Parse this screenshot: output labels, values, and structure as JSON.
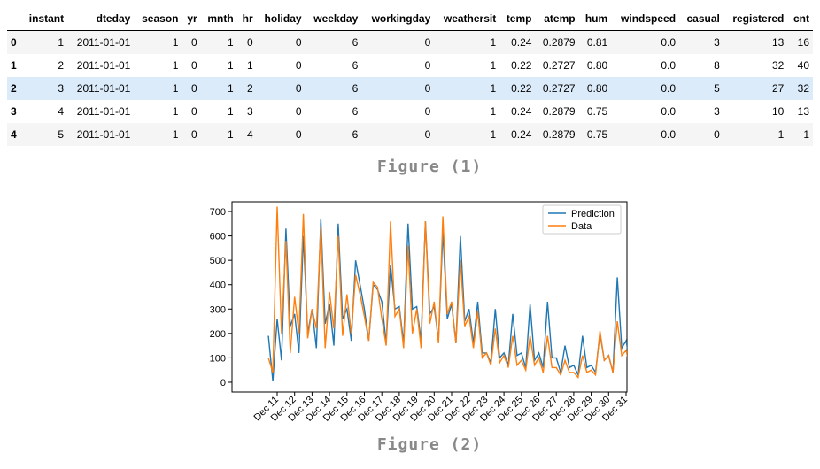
{
  "table": {
    "columns": [
      "",
      "instant",
      "dteday",
      "season",
      "yr",
      "mnth",
      "hr",
      "holiday",
      "weekday",
      "workingday",
      "weathersit",
      "temp",
      "atemp",
      "hum",
      "windspeed",
      "casual",
      "registered",
      "cnt"
    ],
    "rows": [
      [
        "0",
        "1",
        "2011-01-01",
        "1",
        "0",
        "1",
        "0",
        "0",
        "6",
        "0",
        "1",
        "0.24",
        "0.2879",
        "0.81",
        "0.0",
        "3",
        "13",
        "16"
      ],
      [
        "1",
        "2",
        "2011-01-01",
        "1",
        "0",
        "1",
        "1",
        "0",
        "6",
        "0",
        "1",
        "0.22",
        "0.2727",
        "0.80",
        "0.0",
        "8",
        "32",
        "40"
      ],
      [
        "2",
        "3",
        "2011-01-01",
        "1",
        "0",
        "1",
        "2",
        "0",
        "6",
        "0",
        "1",
        "0.22",
        "0.2727",
        "0.80",
        "0.0",
        "5",
        "27",
        "32"
      ],
      [
        "3",
        "4",
        "2011-01-01",
        "1",
        "0",
        "1",
        "3",
        "0",
        "6",
        "0",
        "1",
        "0.24",
        "0.2879",
        "0.75",
        "0.0",
        "3",
        "10",
        "13"
      ],
      [
        "4",
        "5",
        "2011-01-01",
        "1",
        "0",
        "1",
        "4",
        "0",
        "6",
        "0",
        "1",
        "0.24",
        "0.2879",
        "0.75",
        "0.0",
        "0",
        "1",
        "1"
      ]
    ],
    "highlighted_row": 2
  },
  "captions": {
    "figure1": "Figure (1)",
    "figure2": "Figure (2)"
  },
  "chart_data": {
    "type": "line",
    "title": "",
    "xlabel": "",
    "ylabel": "",
    "ylim": [
      -40,
      740
    ],
    "yticks": [
      0,
      100,
      200,
      300,
      400,
      500,
      600,
      700
    ],
    "xticks": [
      "Dec 11",
      "Dec 12",
      "Dec 13",
      "Dec 14",
      "Dec 15",
      "Dec 16",
      "Dec 17",
      "Dec 18",
      "Dec 19",
      "Dec 20",
      "Dec 21",
      "Dec 22",
      "Dec 23",
      "Dec 24",
      "Dec 25",
      "Dec 26",
      "Dec 27",
      "Dec 28",
      "Dec 29",
      "Dec 30",
      "Dec 31"
    ],
    "x_start": "Dec 10 12:00",
    "points_per_day": 4,
    "legend_position": "top-right",
    "series": [
      {
        "name": "Prediction",
        "color": "#1f77b4",
        "values": [
          190,
          5,
          260,
          90,
          630,
          230,
          280,
          120,
          600,
          200,
          300,
          140,
          670,
          240,
          320,
          150,
          650,
          260,
          300,
          170,
          500,
          400,
          300,
          170,
          400,
          380,
          330,
          160,
          480,
          300,
          310,
          160,
          650,
          300,
          310,
          170,
          660,
          280,
          310,
          170,
          620,
          260,
          320,
          160,
          600,
          250,
          300,
          160,
          330,
          120,
          120,
          80,
          300,
          100,
          120,
          70,
          280,
          110,
          120,
          60,
          320,
          90,
          120,
          60,
          330,
          100,
          100,
          40,
          150,
          60,
          70,
          30,
          190,
          60,
          70,
          40,
          200,
          90,
          110,
          40,
          430,
          140,
          170,
          60,
          350,
          200,
          160,
          60,
          300,
          150,
          150,
          40,
          270,
          130,
          140,
          40,
          430,
          150
        ]
      },
      {
        "name": "Data",
        "color": "#ff7f0e",
        "values": [
          100,
          40,
          720,
          200,
          580,
          120,
          350,
          200,
          690,
          180,
          300,
          220,
          640,
          140,
          370,
          220,
          600,
          190,
          360,
          200,
          440,
          360,
          270,
          170,
          410,
          390,
          260,
          150,
          660,
          270,
          300,
          140,
          560,
          200,
          300,
          140,
          660,
          240,
          330,
          160,
          680,
          280,
          330,
          160,
          500,
          230,
          270,
          140,
          290,
          100,
          120,
          70,
          220,
          80,
          110,
          60,
          190,
          70,
          90,
          50,
          190,
          70,
          100,
          40,
          190,
          60,
          60,
          30,
          90,
          40,
          40,
          20,
          110,
          40,
          50,
          30,
          210,
          90,
          110,
          40,
          250,
          110,
          130,
          50,
          220,
          110,
          120,
          40,
          170,
          100,
          120,
          40,
          160,
          100,
          110,
          40,
          200,
          150
        ]
      }
    ]
  }
}
